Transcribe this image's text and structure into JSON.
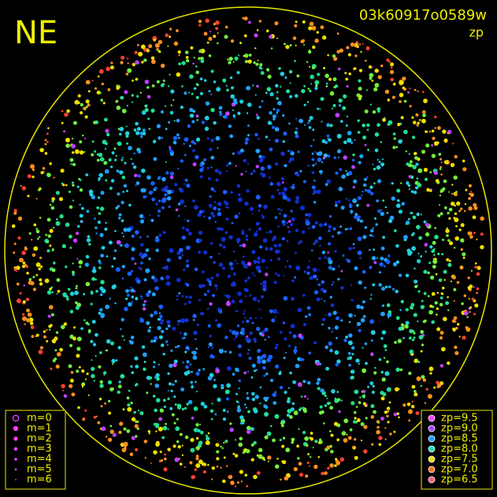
{
  "header": {
    "direction": "NE",
    "image_id": "03k60917o0589w",
    "mode": "zp"
  },
  "magnitude_legend": [
    "m=0",
    "m=1",
    "m=2",
    "m=3",
    "m=4",
    "m=5",
    "m=6"
  ],
  "zp_legend": [
    {
      "label": "zp=9.5",
      "color": "#ff40ff"
    },
    {
      "label": "zp=9.0",
      "color": "#b040ff"
    },
    {
      "label": "zp=8.5",
      "color": "#20a0ff"
    },
    {
      "label": "zp=8.0",
      "color": "#20e0c0"
    },
    {
      "label": "zp=7.5",
      "color": "#f0e000"
    },
    {
      "label": "zp=7.0",
      "color": "#ff7020"
    },
    {
      "label": "zp=6.5",
      "color": "#ff6070"
    }
  ]
}
